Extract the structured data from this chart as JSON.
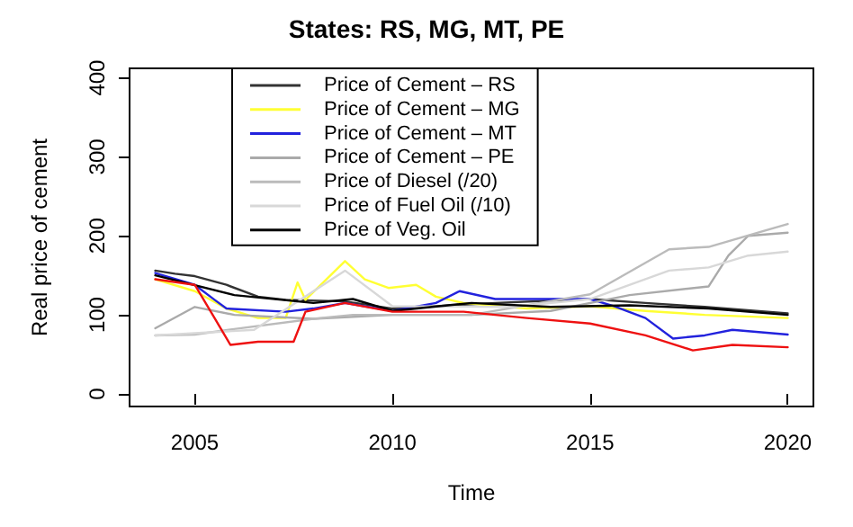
{
  "chart_data": {
    "type": "line",
    "title": "States: RS, MG, MT, PE",
    "xlabel": "Time",
    "ylabel": "Real price of cement",
    "xlim": [
      2003.35,
      2020.65
    ],
    "xticks": [
      2005,
      2010,
      2015,
      2020
    ],
    "ylim": [
      -16,
      412
    ],
    "yticks": [
      0,
      100,
      200,
      300,
      400
    ],
    "grid": false,
    "legend": "top left",
    "marker": "none",
    "line_style": "solid",
    "series": [
      {
        "name": "Price of Cement – RS",
        "color": "#333333",
        "x": [
          2004,
          2004.5,
          2005,
          2005.8,
          2006.6,
          2007.3,
          2008.8,
          2010,
          2011.1,
          2012.6,
          2015,
          2016.4,
          2017.9,
          2020
        ],
        "values": [
          156,
          152,
          149,
          138,
          123,
          119,
          117,
          108,
          111,
          115,
          120,
          115,
          110,
          102
        ]
      },
      {
        "name": "Price of Cement – MG",
        "color": "#ffff33",
        "x": [
          2004,
          2005,
          2005.8,
          2006.6,
          2007.3,
          2007.6,
          2007.8,
          2008.8,
          2009.3,
          2009.9,
          2010.6,
          2011.1,
          2011.8,
          2013.4,
          2015,
          2016.4,
          2017.9,
          2020
        ],
        "values": [
          145,
          130,
          108,
          96,
          96,
          141,
          119,
          168,
          145,
          134,
          138,
          123,
          115,
          108,
          111,
          105,
          100,
          96
        ]
      },
      {
        "name": "Price of Cement – MT",
        "color": "#2222dd",
        "x": [
          2004,
          2005,
          2005.5,
          2005.8,
          2007.3,
          2008,
          2008.8,
          2010,
          2011.1,
          2011.7,
          2012.6,
          2015,
          2015.6,
          2016.4,
          2017.1,
          2017.9,
          2018.6,
          2020
        ],
        "values": [
          153,
          138,
          119,
          108,
          104,
          108,
          115,
          105,
          115,
          130,
          120,
          120,
          111,
          96,
          70,
          74,
          81,
          75
        ]
      },
      {
        "name": "Price of Cement – PE",
        "color": "#aaaaaa",
        "x": [
          2004,
          2005,
          2006,
          2008,
          2010,
          2012,
          2014,
          2016,
          2018,
          2018.5,
          2019,
          2020
        ],
        "values": [
          83,
          110,
          100,
          95,
          100,
          100,
          105,
          125,
          136,
          175,
          200,
          204
        ]
      },
      {
        "name": "Price of Diesel (/20)",
        "color": "#bbbbbb",
        "x": [
          2004,
          2005,
          2006,
          2008,
          2009,
          2012,
          2015,
          2017,
          2018,
          2020
        ],
        "values": [
          74,
          75,
          82,
          95,
          100,
          100,
          126,
          183,
          186,
          215
        ]
      },
      {
        "name": "Price of Fuel Oil (/10)",
        "color": "#d8d8d8",
        "x": [
          2004,
          2006.5,
          2008.8,
          2010,
          2013,
          2015,
          2017,
          2018,
          2019,
          2020
        ],
        "values": [
          74,
          81,
          156,
          111,
          110,
          120,
          156,
          160,
          175,
          180
        ]
      },
      {
        "name": "Price of Veg. Oil",
        "color": "#000000",
        "x": [
          2004,
          2006,
          2008,
          2009,
          2010,
          2012,
          2014,
          2016,
          2018,
          2020
        ],
        "values": [
          150,
          125,
          115,
          120,
          105,
          115,
          110,
          112,
          108,
          100
        ]
      },
      {
        "color": "#ee1111",
        "x": [
          2004,
          2005,
          2005.5,
          2005.9,
          2006.6,
          2007.5,
          2007.8,
          2008.8,
          2010,
          2011.8,
          2013.4,
          2015,
          2016.4,
          2017.6,
          2018.6,
          2020
        ],
        "values": [
          145,
          138,
          96,
          62,
          66,
          66,
          104,
          115,
          104,
          104,
          96,
          89,
          74,
          55,
          62,
          59
        ]
      }
    ]
  }
}
